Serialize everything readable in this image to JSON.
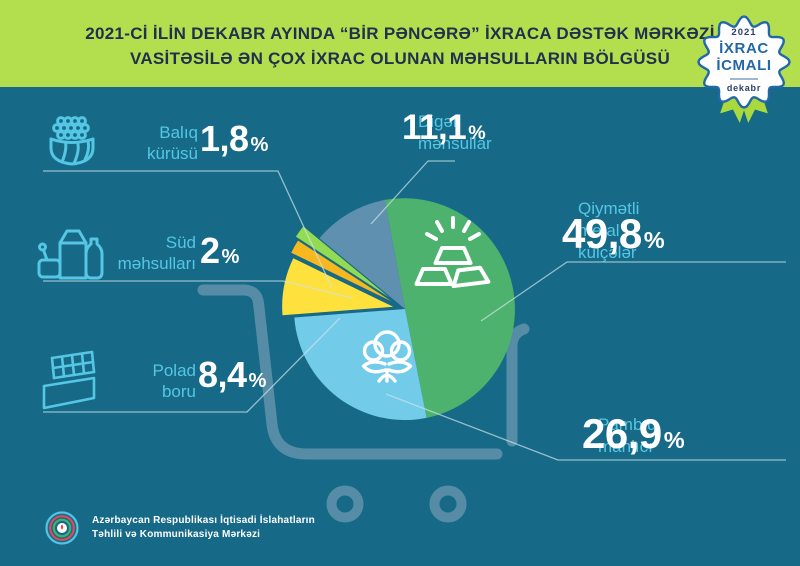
{
  "title": {
    "line1": "2021-Cİ İLİN DEKABR AYINDA “BİR PƏNCƏRƏ” İXRACA DƏSTƏK MƏRKƏZİ",
    "line2": "VASİTƏSİLƏ ƏN ÇOX İXRAC OLUNAN MƏHSULLARIN BÖLGÜSÜ"
  },
  "badge": {
    "year": "2021",
    "line1": "İXRAC",
    "line2": "İCMALI",
    "month": "dekabr"
  },
  "chart_data": {
    "type": "pie",
    "title": "2021-ci ilin dekabr ayında “Bir Pəncərə” İxraca Dəstək Mərkəzi vasitəsilə ən çox ixrac olunan məhsulların bölgüsü",
    "unit": "%",
    "start_angle_deg": -10.5,
    "direction": "clockwise",
    "legend_position": "callouts",
    "slices": [
      {
        "id": "precious-metal",
        "label": "Qiymətli metal külçələr",
        "value": 49.8,
        "display": "49,8",
        "color": "#4cb26e",
        "icon": "gold-bars-icon",
        "exploded": false
      },
      {
        "id": "cotton-lint",
        "label": "Pambıq mahlıcı",
        "value": 26.9,
        "display": "26,9",
        "color": "#72cbe9",
        "icon": "cotton-icon",
        "exploded": false
      },
      {
        "id": "steel-pipe",
        "label": "Polad boru",
        "value": 8.4,
        "display": "8,4",
        "color": "#ffe13d",
        "icon": "pipes-icon",
        "exploded": true
      },
      {
        "id": "dairy",
        "label": "Süd məhsulları",
        "value": 2,
        "display": "2",
        "color": "#f7b71f",
        "icon": "milk-icon",
        "exploded": true
      },
      {
        "id": "fish-caviar",
        "label": "Balıq kürüsü",
        "value": 1.8,
        "display": "1,8",
        "color": "#93dc52",
        "icon": "caviar-icon",
        "exploded": true
      },
      {
        "id": "other",
        "label": "Digər məhsullar",
        "value": 11.1,
        "display": "11,1",
        "color": "#6090b0",
        "icon": "",
        "exploded": false
      }
    ]
  },
  "callouts": {
    "fish": {
      "lines": [
        "Balıq",
        "kürüsü"
      ]
    },
    "milk": {
      "lines": [
        "Süd",
        "məhsulları"
      ]
    },
    "pipe": {
      "lines": [
        "Polad",
        "boru"
      ]
    },
    "other": {
      "lines": [
        "Digər",
        "məhsullar"
      ]
    },
    "metal": {
      "lines": [
        "Qiymətli",
        "metal",
        "külçələr"
      ]
    },
    "cotton": {
      "lines": [
        "Pambıq",
        "mahlıcı"
      ]
    }
  },
  "footer": {
    "org_line1": "Azərbaycan Respublikası İqtisadi İslahatların",
    "org_line2": "Təhlili və Kommunikasiya Mərkəzi"
  },
  "colors": {
    "background": "#166a88",
    "banner": "#b3df4e",
    "title_text": "#21304f",
    "label_blue": "#55c6e3",
    "value_white": "#ffffff",
    "cart": "#568ca6",
    "leader_line": "#cfe3ea",
    "badge_blue": "#2268a8",
    "badge_navy": "#27406b",
    "ribbon": "#a9d93f"
  }
}
